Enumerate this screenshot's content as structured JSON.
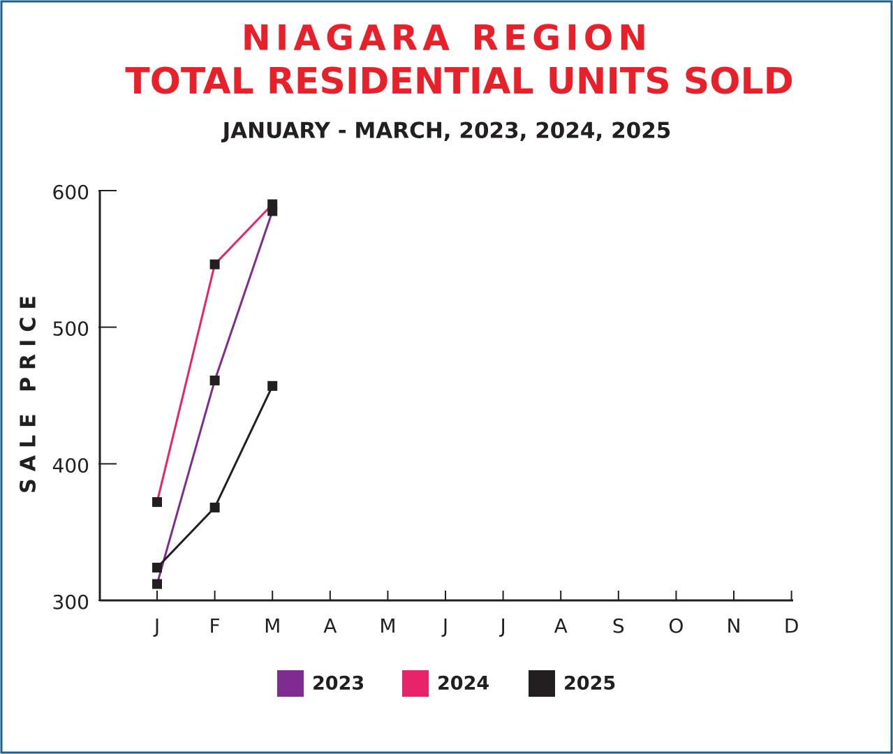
{
  "chart_data": {
    "type": "line",
    "title": "NIAGARA REGION",
    "title_line2": "TOTAL RESIDENTIAL UNITS SOLD",
    "subtitle": "JANUARY - MARCH, 2023, 2024, 2025",
    "y_label": "SALE PRICE",
    "categories": [
      "J",
      "F",
      "M",
      "A",
      "M",
      "J",
      "J",
      "A",
      "S",
      "O",
      "N",
      "D"
    ],
    "series": [
      {
        "name": "2023",
        "color": "#7f2b91",
        "values": [
          312,
          461,
          585,
          null,
          null,
          null,
          null,
          null,
          null,
          null,
          null,
          null
        ]
      },
      {
        "name": "2024",
        "color": "#e8236a",
        "values": [
          372,
          546,
          590,
          null,
          null,
          null,
          null,
          null,
          null,
          null,
          null,
          null
        ]
      },
      {
        "name": "2025",
        "color": "#231f20",
        "values": [
          324,
          368,
          457,
          null,
          null,
          null,
          null,
          null,
          null,
          null,
          null,
          null
        ]
      }
    ],
    "marker_color": "#231f20",
    "ylim": [
      300,
      600
    ],
    "yticks": [
      300,
      400,
      500,
      600
    ],
    "grid": false
  }
}
